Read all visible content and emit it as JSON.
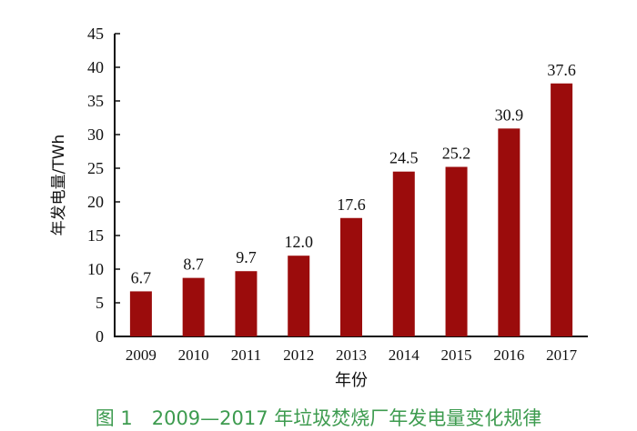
{
  "chart_data": {
    "type": "bar",
    "categories": [
      "2009",
      "2010",
      "2011",
      "2012",
      "2013",
      "2014",
      "2015",
      "2016",
      "2017"
    ],
    "values": [
      6.7,
      8.7,
      9.7,
      12.0,
      17.6,
      24.5,
      25.2,
      30.9,
      37.6
    ],
    "value_labels": [
      "6.7",
      "8.7",
      "9.7",
      "12.0",
      "17.6",
      "24.5",
      "25.2",
      "30.9",
      "37.6"
    ],
    "xlabel": "年份",
    "ylabel": "年发电量/TWh",
    "ylim": [
      0,
      45
    ],
    "yticks": [
      0,
      5,
      10,
      15,
      20,
      25,
      30,
      35,
      40,
      45
    ],
    "grid": false,
    "bar_color": "#9b0c0c",
    "caption": "图 1　2009—2017 年垃圾焚烧厂年发电量变化规律",
    "caption_color": "#3d9b4f"
  }
}
